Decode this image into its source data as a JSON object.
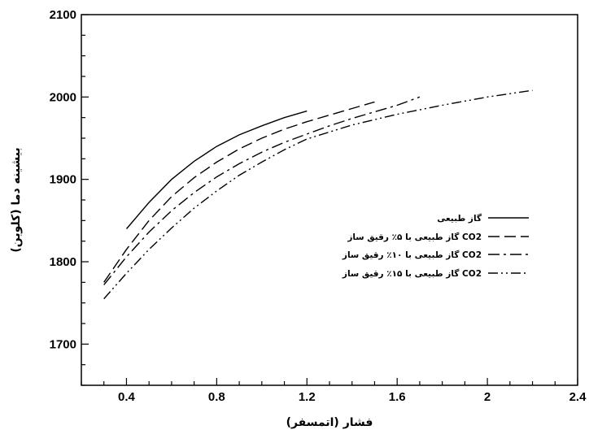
{
  "chart_data": {
    "type": "line",
    "title": "",
    "xlabel": "فشار (اتمسفر)",
    "ylabel": "بیشینه دما (کلوین)",
    "xlim": [
      0.2,
      2.4
    ],
    "ylim": [
      1650,
      2100
    ],
    "xticks": [
      0.4,
      0.8,
      1.2,
      1.6,
      2,
      2.4
    ],
    "xtick_labels": [
      "0.4",
      "0.8",
      "1.2",
      "1.6",
      "2",
      "2.4"
    ],
    "yticks": [
      1700,
      1800,
      1900,
      2000,
      2100
    ],
    "ytick_labels": [
      "1700",
      "1800",
      "1900",
      "2000",
      "2100"
    ],
    "grid": false,
    "legend_position": "right-middle",
    "series": [
      {
        "name": "گاز طبیعی",
        "style": "solid",
        "x": [
          0.4,
          0.5,
          0.6,
          0.7,
          0.8,
          0.9,
          1.0,
          1.1,
          1.2
        ],
        "y": [
          1840,
          1872,
          1900,
          1922,
          1940,
          1954,
          1965,
          1975,
          1983
        ]
      },
      {
        "name": "گاز طبیعی با ۵٪ رقیق ساز CO2",
        "style": "dash",
        "x": [
          0.3,
          0.4,
          0.5,
          0.6,
          0.7,
          0.8,
          0.9,
          1.0,
          1.1,
          1.2,
          1.3,
          1.4,
          1.5
        ],
        "y": [
          1775,
          1815,
          1850,
          1879,
          1902,
          1921,
          1937,
          1950,
          1961,
          1970,
          1978,
          1986,
          1994
        ]
      },
      {
        "name": "گاز طبیعی با ۱۰٪ رقیق ساز CO2",
        "style": "dash-dot",
        "x": [
          0.3,
          0.4,
          0.5,
          0.6,
          0.7,
          0.8,
          0.9,
          1.0,
          1.1,
          1.2,
          1.3,
          1.4,
          1.5,
          1.6,
          1.7
        ],
        "y": [
          1772,
          1806,
          1836,
          1862,
          1884,
          1903,
          1919,
          1933,
          1945,
          1955,
          1965,
          1974,
          1982,
          1990,
          2000
        ]
      },
      {
        "name": "گاز طبیعی با ۱۵٪ رقیق ساز CO2",
        "style": "dash-dot-dot",
        "x": [
          0.3,
          0.4,
          0.5,
          0.6,
          0.7,
          0.8,
          0.9,
          1.0,
          1.1,
          1.2,
          1.4,
          1.6,
          1.8,
          2.0,
          2.2
        ],
        "y": [
          1755,
          1786,
          1815,
          1841,
          1865,
          1886,
          1905,
          1921,
          1936,
          1949,
          1966,
          1979,
          1990,
          2000,
          2008
        ]
      }
    ]
  }
}
